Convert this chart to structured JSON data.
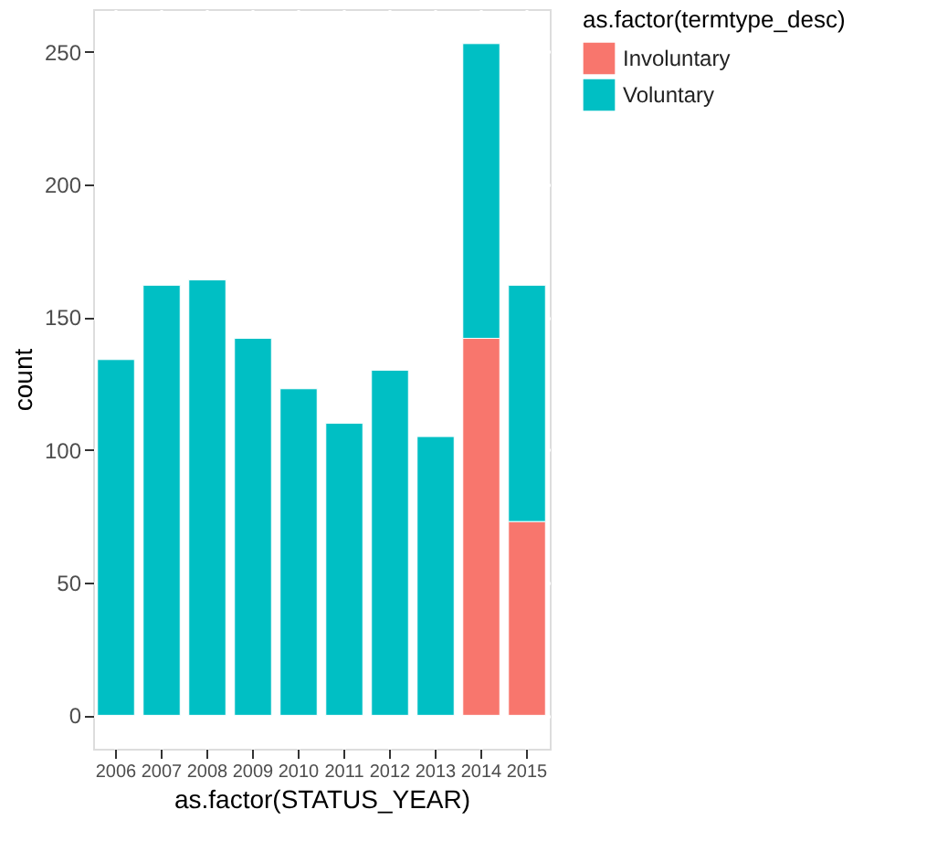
{
  "chart_data": {
    "type": "bar",
    "stacked": true,
    "categories": [
      "2006",
      "2007",
      "2008",
      "2009",
      "2010",
      "2011",
      "2012",
      "2013",
      "2014",
      "2015"
    ],
    "series": [
      {
        "name": "Involuntary",
        "color": "#f8766d",
        "values": [
          null,
          null,
          null,
          null,
          null,
          null,
          null,
          null,
          142,
          73
        ]
      },
      {
        "name": "Voluntary",
        "color": "#00bfc4",
        "values": [
          134,
          162,
          164,
          142,
          123,
          110,
          130,
          105,
          111,
          89
        ]
      }
    ],
    "xlabel": "as.factor(STATUS_YEAR)",
    "ylabel": "count",
    "legend_title": "as.factor(termtype_desc)",
    "ylim": [
      -12.6,
      266
    ],
    "yticks": [
      0,
      50,
      100,
      150,
      200,
      250
    ],
    "grid": true,
    "legend": "right"
  }
}
